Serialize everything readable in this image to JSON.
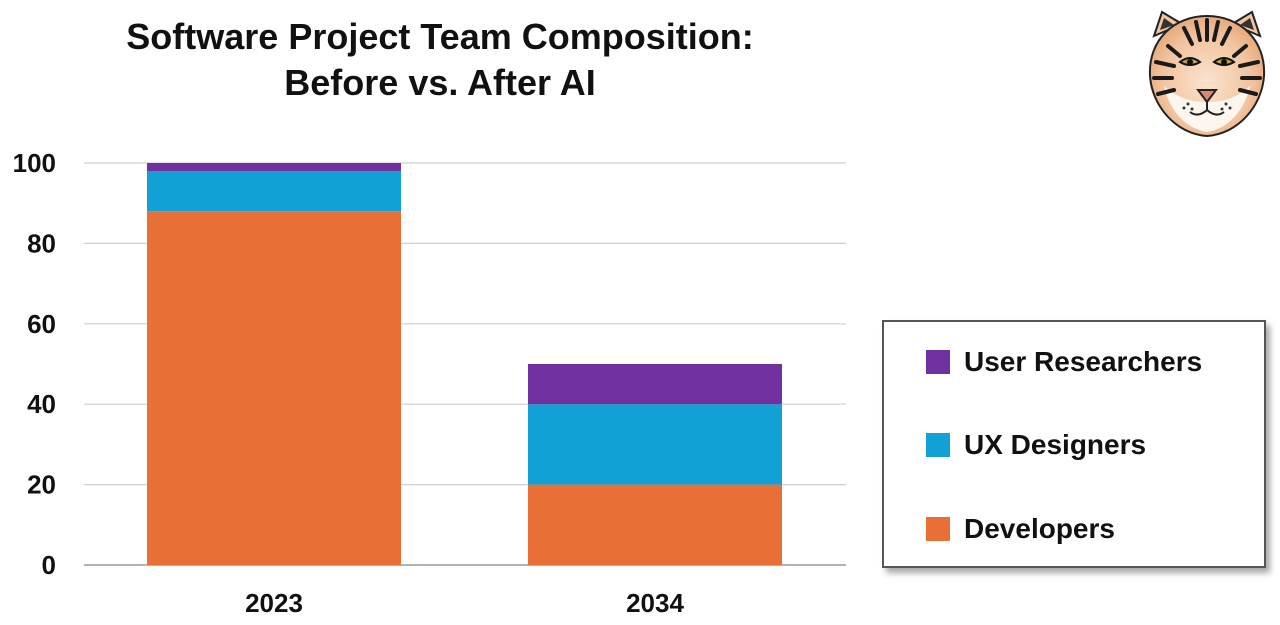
{
  "chart_data": {
    "type": "bar",
    "stacked": true,
    "title": "Software Project Team Composition:",
    "subtitle": "Before vs. After AI",
    "categories": [
      "2023",
      "2034"
    ],
    "series": [
      {
        "name": "Developers",
        "values": [
          88,
          20
        ],
        "color": "#E86F35"
      },
      {
        "name": "UX Designers",
        "values": [
          10,
          20
        ],
        "color": "#13A0D4"
      },
      {
        "name": "User Researchers",
        "values": [
          2,
          10
        ],
        "color": "#7030A0"
      }
    ],
    "y_ticks": [
      0,
      20,
      40,
      60,
      80,
      100
    ],
    "ylim": [
      0,
      100
    ],
    "grid": true,
    "legend_placement": "right",
    "legend_order": [
      "User Researchers",
      "UX Designers",
      "Developers"
    ]
  },
  "logo": {
    "icon": "tiger-head-icon"
  }
}
